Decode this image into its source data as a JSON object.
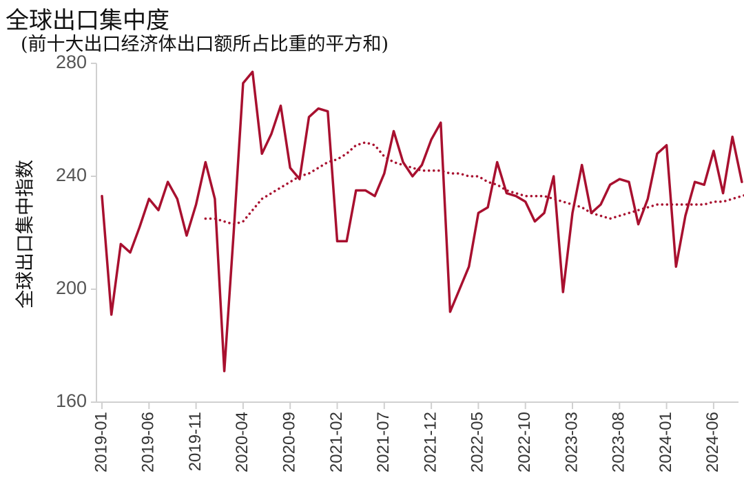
{
  "chart_data": {
    "type": "line",
    "title": "全球出口集中度",
    "subtitle": "(前十大出口经济体出口额所占比重的平方和)",
    "ylabel": "全球出口集中指数",
    "xlabel": "",
    "ylim": [
      160,
      280
    ],
    "yticks": [
      160,
      200,
      240,
      280
    ],
    "x_tick_labels": [
      "2019-01",
      "2019-06",
      "2019-11",
      "2020-04",
      "2020-09",
      "2021-02",
      "2021-07",
      "2021-12",
      "2022-05",
      "2022-10",
      "2023-03",
      "2023-08",
      "2024-01",
      "2024-06"
    ],
    "x_tick_every": 5,
    "grid": false,
    "legend": "none",
    "colors": {
      "line": "#a8102f",
      "axis": "#d0d0d0"
    },
    "series": [
      {
        "style": "solid",
        "start_index": 0,
        "values": [
          233,
          191,
          216,
          213,
          222,
          232,
          228,
          238,
          232,
          219,
          230,
          245,
          232,
          171,
          220,
          273,
          277,
          248,
          255,
          265,
          243,
          239,
          261,
          264,
          263,
          217,
          217,
          235,
          235,
          233,
          241,
          256,
          245,
          240,
          244,
          253,
          259,
          192,
          200,
          208,
          227,
          229,
          245,
          234,
          233,
          231,
          224,
          227,
          240,
          199,
          227,
          244,
          227,
          230,
          237,
          239,
          238,
          223,
          232,
          248,
          251,
          208,
          226,
          238,
          237,
          249,
          234,
          254,
          238
        ]
      },
      {
        "style": "dotted",
        "start_index": 11,
        "values": [
          225,
          225,
          224,
          223,
          224,
          228,
          232,
          234,
          236,
          238,
          240,
          241,
          243,
          245,
          246,
          248,
          251,
          252,
          251,
          247,
          245,
          244,
          243,
          242,
          242,
          242,
          241,
          241,
          240,
          240,
          238,
          237,
          235,
          234,
          233,
          233,
          233,
          232,
          231,
          230,
          229,
          227,
          226,
          225,
          226,
          227,
          228,
          229,
          230,
          230,
          230,
          230,
          230,
          230,
          231,
          231,
          232,
          233,
          234,
          234,
          234,
          234,
          235,
          236,
          236,
          237,
          238
        ]
      }
    ]
  }
}
